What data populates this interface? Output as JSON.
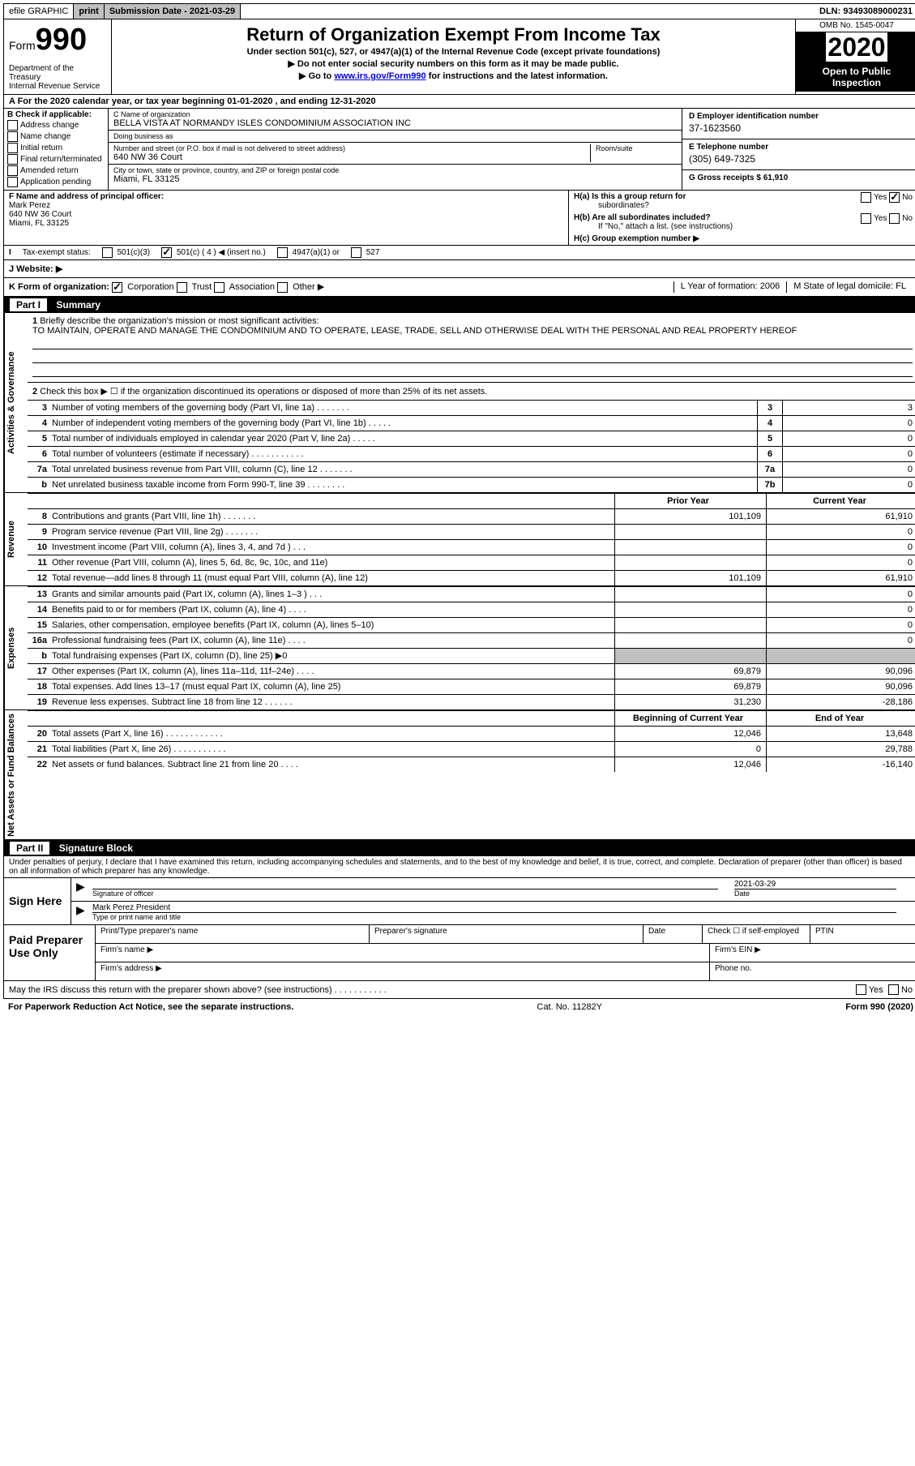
{
  "top_bar": {
    "efile": "efile GRAPHIC",
    "print": "print",
    "submission_label": "Submission Date - 2021-03-29",
    "dln": "DLN: 93493089000231"
  },
  "header": {
    "form_word": "Form",
    "form_num": "990",
    "title": "Return of Organization Exempt From Income Tax",
    "subtitle": "Under section 501(c), 527, or 4947(a)(1) of the Internal Revenue Code (except private foundations)",
    "note1": "▶ Do not enter social security numbers on this form as it may be made public.",
    "note2_pre": "▶ Go to ",
    "note2_link": "www.irs.gov/Form990",
    "note2_post": " for instructions and the latest information.",
    "dept": "Department of the Treasury\nInternal Revenue Service",
    "omb": "OMB No. 1545-0047",
    "year": "2020",
    "open_public": "Open to Public Inspection"
  },
  "row_a": {
    "text": "A For the 2020 calendar year, or tax year beginning 01-01-2020    , and ending 12-31-2020"
  },
  "col_b": {
    "header": "B Check if applicable:",
    "items": [
      "Address change",
      "Name change",
      "Initial return",
      "Final return/terminated",
      "Amended return",
      "Application pending"
    ]
  },
  "col_c": {
    "name_label": "C Name of organization",
    "name": "BELLA VISTA AT NORMANDY ISLES CONDOMINIUM ASSOCIATION INC",
    "dba_label": "Doing business as",
    "dba": "",
    "street_label": "Number and street (or P.O. box if mail is not delivered to street address)",
    "street": "640 NW 36 Court",
    "room_label": "Room/suite",
    "room": "",
    "city_label": "City or town, state or province, country, and ZIP or foreign postal code",
    "city": "Miami, FL  33125"
  },
  "col_deg": {
    "d_label": "D Employer identification number",
    "d_value": "37-1623560",
    "e_label": "E Telephone number",
    "e_value": "(305) 649-7325",
    "g_label": "G Gross receipts $ 61,910"
  },
  "col_f": {
    "label": "F  Name and address of principal officer:",
    "name": "Mark Perez",
    "street": "640 NW 36 Court",
    "city": "Miami, FL 33125"
  },
  "col_h": {
    "ha_label": "H(a)  Is this a group return for",
    "ha_sub": "subordinates?",
    "ha_yes": "Yes",
    "ha_no": "No",
    "hb_label": "H(b)  Are all subordinates included?",
    "hb_yes": "Yes",
    "hb_no": "No",
    "hb_note": "If \"No,\" attach a list. (see instructions)",
    "hc_label": "H(c)  Group exemption number ▶"
  },
  "tax_row": {
    "label": "Tax-exempt status:",
    "opt1": "501(c)(3)",
    "opt2": "501(c) ( 4 ) ◀ (insert no.)",
    "opt3": "4947(a)(1) or",
    "opt4": "527"
  },
  "website_row": {
    "label": "J   Website: ▶"
  },
  "k_row": {
    "k_label": "K Form of organization:",
    "k_corp": "Corporation",
    "k_trust": "Trust",
    "k_assoc": "Association",
    "k_other": "Other ▶",
    "l_label": "L Year of formation: 2006",
    "m_label": "M State of legal domicile: FL"
  },
  "part1": {
    "header_part": "Part I",
    "header_title": "Summary",
    "side_gov": "Activities & Governance",
    "side_rev": "Revenue",
    "side_exp": "Expenses",
    "side_net": "Net Assets or Fund Balances",
    "line1_label": "1",
    "line1_text": "Briefly describe the organization's mission or most significant activities:",
    "line1_desc": "TO MAINTAIN, OPERATE AND MANAGE THE CONDOMINIUM AND TO OPERATE, LEASE, TRADE, SELL AND OTHERWISE DEAL WITH THE PERSONAL AND REAL PROPERTY HEREOF",
    "line2_label": "2",
    "line2_text": "Check this box ▶ ☐  if the organization discontinued its operations or disposed of more than 25% of its net assets.",
    "rows_single": [
      {
        "ln": "3",
        "desc": "Number of voting members of the governing body (Part VI, line 1a)   .    .    .    .    .    .    .",
        "box": "3",
        "val": "3"
      },
      {
        "ln": "4",
        "desc": "Number of independent voting members of the governing body (Part VI, line 1b)   .    .    .    .    .",
        "box": "4",
        "val": "0"
      },
      {
        "ln": "5",
        "desc": "Total number of individuals employed in calendar year 2020 (Part V, line 2a)   .    .    .    .    .",
        "box": "5",
        "val": "0"
      },
      {
        "ln": "6",
        "desc": "Total number of volunteers (estimate if necessary)    .    .    .    .    .    .    .    .    .    .    .",
        "box": "6",
        "val": "0"
      },
      {
        "ln": "7a",
        "desc": "Total unrelated business revenue from Part VIII, column (C), line 12   .    .    .    .    .    .    .",
        "box": "7a",
        "val": "0"
      },
      {
        "ln": "b",
        "desc": "Net unrelated business taxable income from Form 990-T, line 39    .    .    .    .    .    .    .    .",
        "box": "7b",
        "val": "0"
      }
    ],
    "prior_header": "Prior Year",
    "current_header": "Current Year",
    "rows_rev": [
      {
        "ln": "8",
        "desc": "Contributions and grants (Part VIII, line 1h)   .    .    .    .    .    .    .",
        "prior": "101,109",
        "current": "61,910"
      },
      {
        "ln": "9",
        "desc": "Program service revenue (Part VIII, line 2g)   .    .    .    .    .    .    .",
        "prior": "",
        "current": "0"
      },
      {
        "ln": "10",
        "desc": "Investment income (Part VIII, column (A), lines 3, 4, and 7d )    .    .    .",
        "prior": "",
        "current": "0"
      },
      {
        "ln": "11",
        "desc": "Other revenue (Part VIII, column (A), lines 5, 6d, 8c, 9c, 10c, and 11e)",
        "prior": "",
        "current": "0"
      },
      {
        "ln": "12",
        "desc": "Total revenue—add lines 8 through 11 (must equal Part VIII, column (A), line 12)",
        "prior": "101,109",
        "current": "61,910"
      }
    ],
    "rows_exp": [
      {
        "ln": "13",
        "desc": "Grants and similar amounts paid (Part IX, column (A), lines 1–3 )   .    .    .",
        "prior": "",
        "current": "0"
      },
      {
        "ln": "14",
        "desc": "Benefits paid to or for members (Part IX, column (A), line 4)   .    .    .    .",
        "prior": "",
        "current": "0"
      },
      {
        "ln": "15",
        "desc": "Salaries, other compensation, employee benefits (Part IX, column (A), lines 5–10)",
        "prior": "",
        "current": "0"
      },
      {
        "ln": "16a",
        "desc": "Professional fundraising fees (Part IX, column (A), line 11e)   .    .    .    .",
        "prior": "",
        "current": "0"
      },
      {
        "ln": "b",
        "desc": "Total fundraising expenses (Part IX, column (D), line 25) ▶0",
        "prior": "shaded",
        "current": "shaded"
      },
      {
        "ln": "17",
        "desc": "Other expenses (Part IX, column (A), lines 11a–11d, 11f–24e)   .    .    .    .",
        "prior": "69,879",
        "current": "90,096"
      },
      {
        "ln": "18",
        "desc": "Total expenses. Add lines 13–17 (must equal Part IX, column (A), line 25)",
        "prior": "69,879",
        "current": "90,096"
      },
      {
        "ln": "19",
        "desc": "Revenue less expenses. Subtract line 18 from line 12   .    .    .    .    .    .",
        "prior": "31,230",
        "current": "-28,186"
      }
    ],
    "net_header_begin": "Beginning of Current Year",
    "net_header_end": "End of Year",
    "rows_net": [
      {
        "ln": "20",
        "desc": "Total assets (Part X, line 16)   .    .    .    .    .    .    .    .    .    .    .    .",
        "prior": "12,046",
        "current": "13,648"
      },
      {
        "ln": "21",
        "desc": "Total liabilities (Part X, line 26)   .    .    .    .    .    .    .    .    .    .    .",
        "prior": "0",
        "current": "29,788"
      },
      {
        "ln": "22",
        "desc": "Net assets or fund balances. Subtract line 21 from line 20   .    .    .    .",
        "prior": "12,046",
        "current": "-16,140"
      }
    ]
  },
  "part2": {
    "header_part": "Part II",
    "header_title": "Signature Block",
    "penalty": "Under penalties of perjury, I declare that I have examined this return, including accompanying schedules and statements, and to the best of my knowledge and belief, it is true, correct, and complete. Declaration of preparer (other than officer) is based on all information of which preparer has any knowledge.",
    "sign_here": "Sign Here",
    "sig_officer_label": "Signature of officer",
    "sig_date": "2021-03-29",
    "sig_date_label": "Date",
    "sig_name": "Mark Perez  President",
    "sig_name_label": "Type or print name and title",
    "paid_prep": "Paid Preparer Use Only",
    "prep_name_label": "Print/Type preparer's name",
    "prep_sig_label": "Preparer's signature",
    "prep_date_label": "Date",
    "prep_check_label": "Check ☐ if self-employed",
    "prep_ptin_label": "PTIN",
    "firm_name_label": "Firm's name    ▶",
    "firm_ein_label": "Firm's EIN ▶",
    "firm_addr_label": "Firm's address ▶",
    "phone_label": "Phone no."
  },
  "footer_q": {
    "text": "May the IRS discuss this return with the preparer shown above? (see instructions)    .    .    .    .    .    .    .    .    .    .    .",
    "yes": "Yes",
    "no": "No"
  },
  "final": {
    "left": "For Paperwork Reduction Act Notice, see the separate instructions.",
    "mid": "Cat. No. 11282Y",
    "right": "Form 990 (2020)"
  }
}
